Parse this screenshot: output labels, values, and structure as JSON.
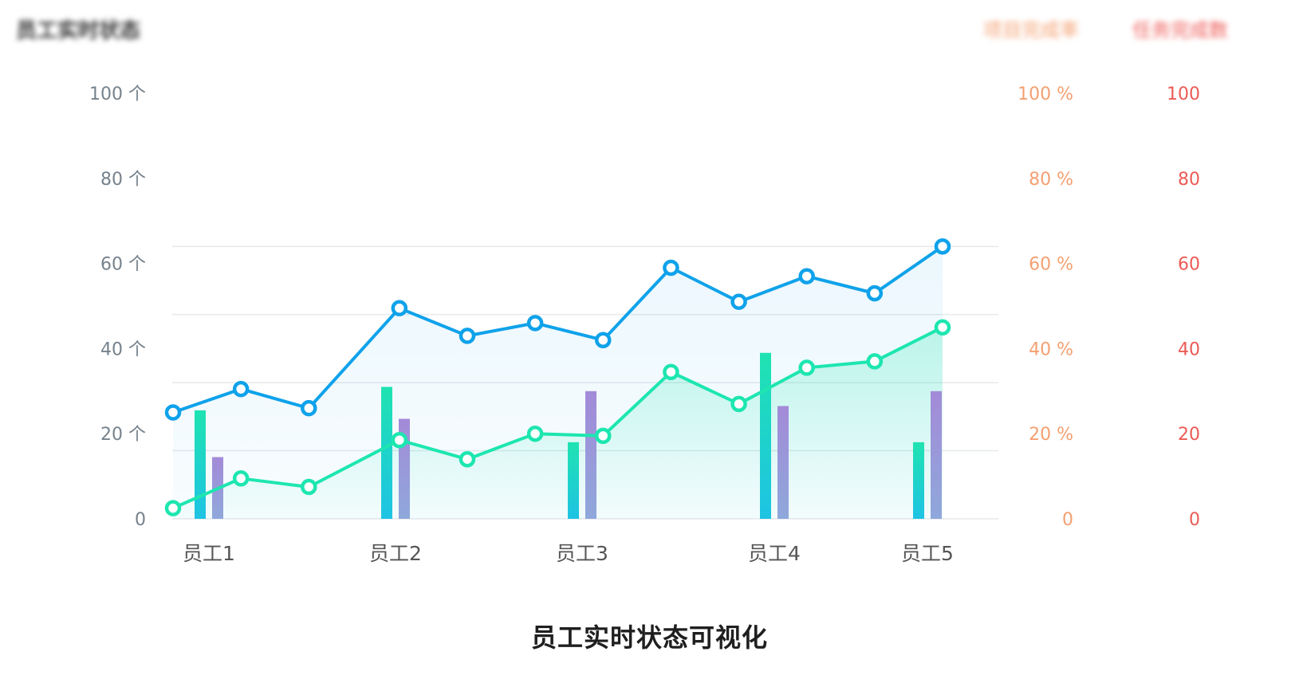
{
  "header": {
    "title": "员工实时状态",
    "legend_completion": "项目完成率",
    "legend_sales": "任务完成数"
  },
  "caption": "员工实时状态可视化",
  "colors": {
    "blue_line": "#0fa2ea",
    "green_line": "#1de6b0",
    "bar_green_top": "#1fe3b1",
    "bar_green_bottom": "#1ec3e3",
    "bar_purple_top": "#a38ad8",
    "bar_purple_bottom": "#8fa8db",
    "left_axis_text": "#76828c",
    "middle_axis_text": "#f4a071",
    "right_axis_text": "#ec5a55",
    "gridline": "#e6e9ec",
    "category_text": "#555555"
  },
  "chart_data": {
    "type": "bar+line",
    "categories": [
      "员工1",
      "员工2",
      "员工3",
      "员工4",
      "员工5"
    ],
    "axes": {
      "left": {
        "min": 0,
        "max": 100,
        "ticks": [
          {
            "value": 0,
            "label": "0"
          },
          {
            "value": 20,
            "label": "20 个"
          },
          {
            "value": 40,
            "label": "40 个"
          },
          {
            "value": 60,
            "label": "60 个"
          },
          {
            "value": 80,
            "label": "80 个"
          },
          {
            "value": 100,
            "label": "100 个"
          }
        ]
      },
      "middle": {
        "min": 0,
        "max": 100,
        "ticks": [
          {
            "value": 0,
            "label": "0"
          },
          {
            "value": 20,
            "label": "20 %"
          },
          {
            "value": 40,
            "label": "40 %"
          },
          {
            "value": 60,
            "label": "60 %"
          },
          {
            "value": 80,
            "label": "80 %"
          },
          {
            "value": 100,
            "label": "100 %"
          }
        ]
      },
      "right": {
        "min": 0,
        "max": 100,
        "ticks": [
          {
            "value": 0,
            "label": "0"
          },
          {
            "value": 20,
            "label": "20"
          },
          {
            "value": 40,
            "label": "40"
          },
          {
            "value": 60,
            "label": "60"
          },
          {
            "value": 80,
            "label": "80"
          },
          {
            "value": 100,
            "label": "100"
          }
        ]
      }
    },
    "gridlines_at": [
      0,
      16,
      32,
      48,
      64
    ],
    "bar_series": [
      {
        "values": [
          25.5,
          31,
          18,
          39,
          18
        ]
      },
      {
        "values": [
          14.5,
          23.5,
          30,
          26.5,
          30
        ]
      }
    ],
    "line_series": [
      {
        "color_key": "blue_line",
        "x": [
          0,
          0.75,
          1.5,
          2.5,
          3.25,
          4,
          4.75,
          5.5,
          6.25,
          7,
          7.75,
          8.5
        ],
        "values": [
          25,
          30.5,
          26,
          49.5,
          43,
          46,
          42,
          59,
          51,
          57,
          53,
          64
        ]
      },
      {
        "color_key": "green_line",
        "x": [
          0,
          0.75,
          1.5,
          2.5,
          3.25,
          4,
          4.75,
          5.5,
          6.25,
          7,
          7.75,
          8.5
        ],
        "values": [
          2.5,
          9.5,
          7.5,
          18.5,
          14,
          20,
          19.5,
          34.5,
          27,
          35.5,
          37,
          45
        ]
      }
    ],
    "x_range": [
      0,
      8.5
    ],
    "grid": true
  }
}
